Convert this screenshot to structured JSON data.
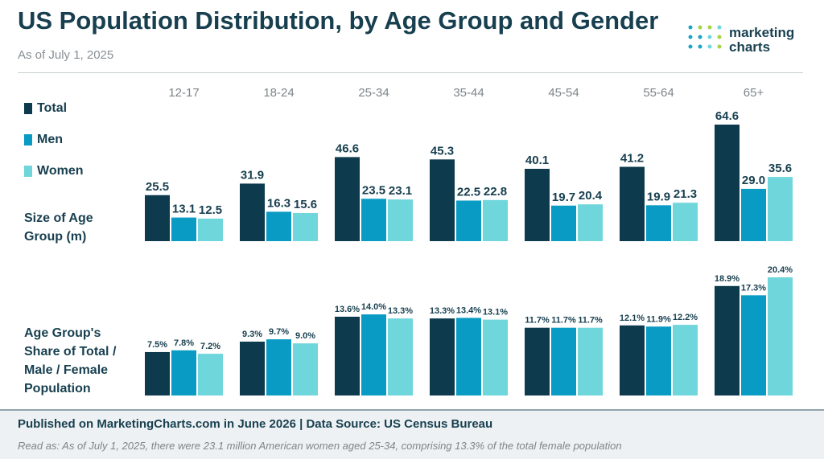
{
  "title": "US Population Distribution, by Age Group and Gender",
  "subtitle": "As of July 1, 2025",
  "logo": {
    "line1": "marketing",
    "line2": "charts"
  },
  "legend": [
    {
      "label": "Total",
      "color": "#0d3b4d"
    },
    {
      "label": "Men",
      "color": "#0a9bc4"
    },
    {
      "label": "Women",
      "color": "#6fd6dc"
    }
  ],
  "row_labels": {
    "size": "Size of Age\nGroup (m)",
    "share": "Age Group's\nShare of Total /\nMale / Female\nPopulation"
  },
  "chart_data": [
    {
      "type": "bar",
      "title": "Size of Age Group (m)",
      "categories": [
        "12-17",
        "18-24",
        "25-34",
        "35-44",
        "45-54",
        "55-64",
        "65+"
      ],
      "series": [
        {
          "name": "Total",
          "values": [
            25.5,
            31.9,
            46.6,
            45.3,
            40.1,
            41.2,
            64.6
          ],
          "labels": [
            "25.5",
            "31.9",
            "46.6",
            "45.3",
            "40.1",
            "41.2",
            "64.6"
          ]
        },
        {
          "name": "Men",
          "values": [
            13.1,
            16.3,
            23.5,
            22.5,
            19.7,
            19.9,
            29.0
          ],
          "labels": [
            "13.1",
            "16.3",
            "23.5",
            "22.5",
            "19.7",
            "19.9",
            "29.0"
          ]
        },
        {
          "name": "Women",
          "values": [
            12.5,
            15.6,
            23.1,
            22.8,
            20.4,
            21.3,
            35.6
          ],
          "labels": [
            "12.5",
            "15.6",
            "23.1",
            "22.8",
            "20.4",
            "21.3",
            "35.6"
          ]
        }
      ],
      "ylim": [
        0,
        64.6
      ]
    },
    {
      "type": "bar",
      "title": "Age Group's Share of Total / Male / Female Population",
      "categories": [
        "12-17",
        "18-24",
        "25-34",
        "35-44",
        "45-54",
        "55-64",
        "65+"
      ],
      "series": [
        {
          "name": "Total",
          "values": [
            7.5,
            9.3,
            13.6,
            13.3,
            11.7,
            12.1,
            18.9
          ],
          "labels": [
            "7.5%",
            "9.3%",
            "13.6%",
            "13.3%",
            "11.7%",
            "12.1%",
            "18.9%"
          ]
        },
        {
          "name": "Men",
          "values": [
            7.8,
            9.7,
            14.0,
            13.4,
            11.7,
            11.9,
            17.3
          ],
          "labels": [
            "7.8%",
            "9.7%",
            "14.0%",
            "13.4%",
            "11.7%",
            "11.9%",
            "17.3%"
          ]
        },
        {
          "name": "Women",
          "values": [
            7.2,
            9.0,
            13.3,
            13.1,
            11.7,
            12.2,
            20.4
          ],
          "labels": [
            "7.2%",
            "9.0%",
            "13.3%",
            "13.1%",
            "11.7%",
            "12.2%",
            "20.4%"
          ]
        }
      ],
      "ylim": [
        0,
        20.4
      ]
    }
  ],
  "footer": {
    "source": "Published on MarketingCharts.com in June 2026 | Data Source: US Census Bureau",
    "note": "Read as: As of July 1, 2025, there were 23.1 million American women aged 25-34, comprising 13.3% of the total female population"
  }
}
